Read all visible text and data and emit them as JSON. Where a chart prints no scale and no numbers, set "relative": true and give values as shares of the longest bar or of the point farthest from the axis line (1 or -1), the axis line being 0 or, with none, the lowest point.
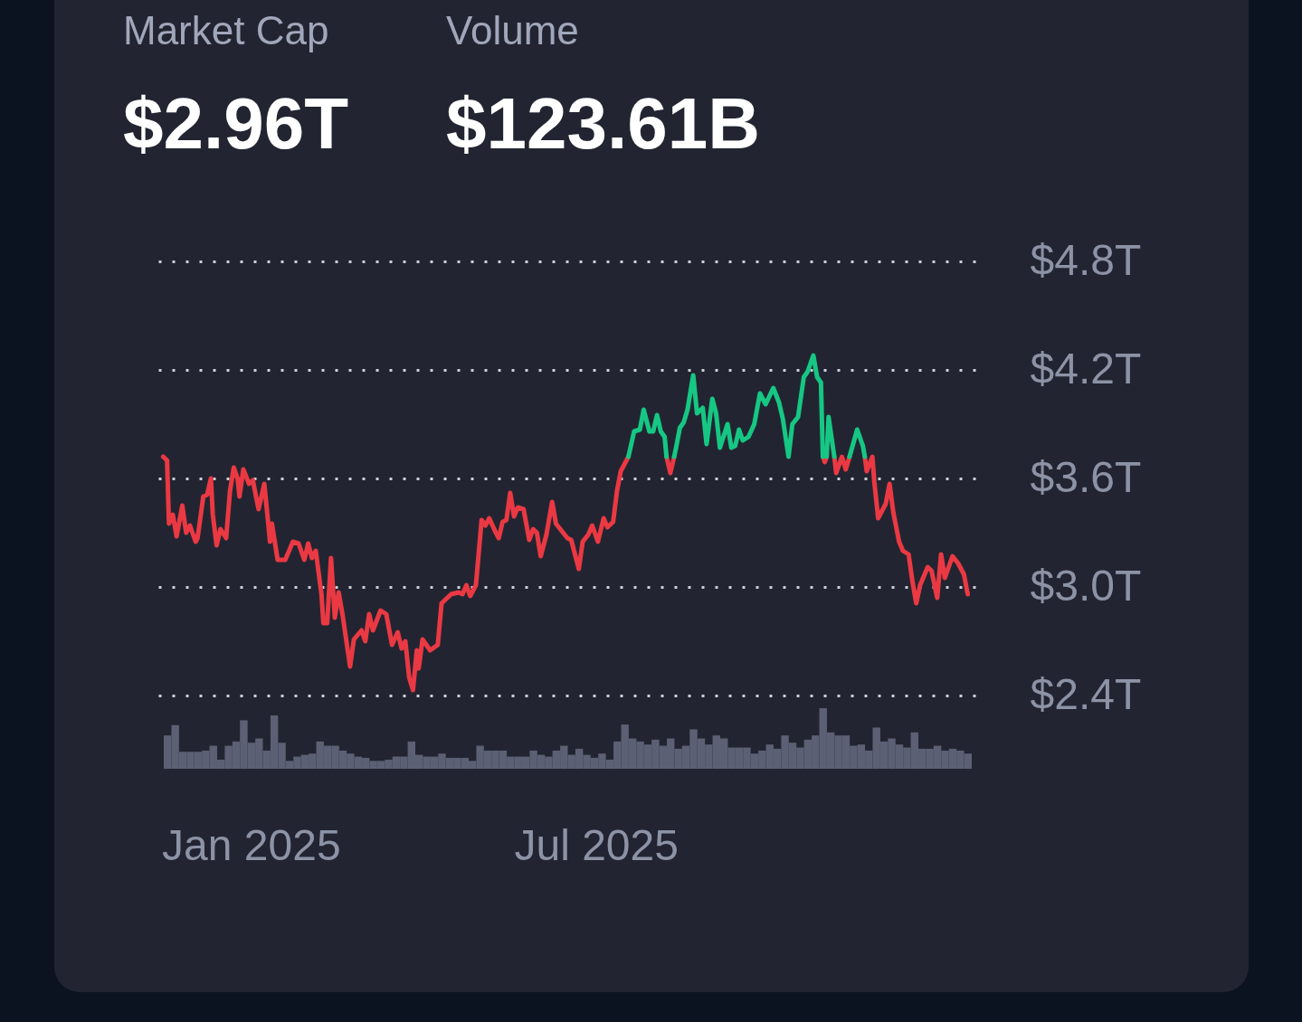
{
  "chart_data": [
    {
      "type": "line",
      "annotations": [
        "Market Cap",
        "$2.96T",
        "Volume",
        "$123.61B"
      ],
      "x": [
        "2024-11-16",
        "2024-11-18",
        "2024-11-19",
        "2024-11-21",
        "2024-11-23",
        "2024-11-26",
        "2024-11-28",
        "2024-11-30",
        "2024-12-03",
        "2024-12-04",
        "2024-12-07",
        "2024-12-09",
        "2024-12-11",
        "2024-12-12",
        "2024-12-14",
        "2024-12-16",
        "2024-12-19",
        "2024-12-21",
        "2024-12-23",
        "2024-12-25",
        "2024-12-26",
        "2024-12-28",
        "2024-12-31",
        "2025-01-02",
        "2025-01-05",
        "2025-01-08",
        "2025-01-10",
        "2025-01-11",
        "2025-01-12",
        "2025-01-15",
        "2025-01-19",
        "2025-01-23",
        "2025-01-26",
        "2025-01-29",
        "2025-01-31",
        "2025-02-02",
        "2025-02-04",
        "2025-02-07",
        "2025-02-08",
        "2025-02-10",
        "2025-02-12",
        "2025-02-14",
        "2025-02-16",
        "2025-02-18",
        "2025-02-22",
        "2025-02-24",
        "2025-02-28",
        "2025-03-02",
        "2025-03-04",
        "2025-03-06",
        "2025-03-10",
        "2025-03-13",
        "2025-03-16",
        "2025-03-19",
        "2025-03-21",
        "2025-03-23",
        "2025-03-25",
        "2025-03-27",
        "2025-03-29",
        "2025-03-30",
        "2025-04-01",
        "2025-04-05",
        "2025-04-09",
        "2025-04-11",
        "2025-04-13",
        "2025-04-16",
        "2025-04-20",
        "2025-04-22",
        "2025-04-24",
        "2025-04-26",
        "2025-04-29",
        "2025-05-01",
        "2025-05-02",
        "2025-05-04",
        "2025-05-06",
        "2025-05-09",
        "2025-05-11",
        "2025-05-13",
        "2025-05-15",
        "2025-05-17",
        "2025-05-19",
        "2025-05-21",
        "2025-05-24",
        "2025-05-27",
        "2025-05-29",
        "2025-05-31",
        "2025-06-02",
        "2025-06-05",
        "2025-06-08",
        "2025-06-10",
        "2025-06-13",
        "2025-06-16",
        "2025-06-18",
        "2025-06-22",
        "2025-06-24",
        "2025-06-27",
        "2025-06-29",
        "2025-07-02",
        "2025-07-05",
        "2025-07-07",
        "2025-07-10",
        "2025-07-12",
        "2025-07-14",
        "2025-07-16",
        "2025-07-18",
        "2025-07-21",
        "2025-07-24",
        "2025-07-26",
        "2025-07-29",
        "2025-07-31",
        "2025-08-02",
        "2025-08-04",
        "2025-08-06",
        "2025-08-07",
        "2025-08-09",
        "2025-08-11",
        "2025-08-12",
        "2025-08-14",
        "2025-08-16",
        "2025-08-18",
        "2025-08-21",
        "2025-08-23",
        "2025-08-26",
        "2025-08-28",
        "2025-08-31",
        "2025-09-02",
        "2025-09-04",
        "2025-09-08",
        "2025-09-10",
        "2025-09-12",
        "2025-09-14",
        "2025-09-16",
        "2025-09-19",
        "2025-09-22",
        "2025-09-25",
        "2025-09-28",
        "2025-10-02",
        "2025-10-05",
        "2025-10-07",
        "2025-10-10",
        "2025-10-12",
        "2025-10-15",
        "2025-10-18",
        "2025-10-20",
        "2025-10-23",
        "2025-10-25",
        "2025-10-27",
        "2025-10-28",
        "2025-10-29",
        "2025-10-30",
        "2025-10-31",
        "2025-11-03",
        "2025-11-04",
        "2025-11-07",
        "2025-11-09",
        "2025-11-11",
        "2025-11-15",
        "2025-11-18",
        "2025-11-19",
        "2025-11-20",
        "2025-11-23",
        "2025-11-24",
        "2025-11-26",
        "2025-11-30",
        "2025-12-02",
        "2025-12-04",
        "2025-12-07",
        "2025-12-09",
        "2025-12-12",
        "2025-12-14",
        "2025-12-16",
        "2025-12-18",
        "2025-12-22",
        "2025-12-24",
        "2025-12-27",
        "2025-12-29",
        "2025-12-31",
        "2026-01-04",
        "2026-01-07",
        "2026-01-10",
        "2026-01-12"
      ],
      "series": [
        {
          "color": "#ea3943",
          "values": [
            3.72,
            3.7,
            3.35,
            3.4,
            3.28,
            3.45,
            3.3,
            3.34,
            3.25,
            3.27,
            3.5,
            3.51,
            3.6,
            3.4,
            3.23,
            3.32,
            3.27,
            3.53,
            3.66,
            3.6,
            3.5,
            3.65,
            3.57,
            3.59,
            3.43,
            3.57,
            3.36,
            3.25,
            3.35,
            3.15,
            3.15,
            3.25,
            3.24,
            3.15,
            3.24,
            3.16,
            3.2,
            2.96,
            2.8,
            2.8,
            3.16,
            2.83,
            2.97,
            2.85,
            2.56,
            2.71,
            2.76,
            2.7,
            2.85,
            2.76,
            2.87,
            2.85,
            2.68,
            2.75,
            2.66,
            2.7,
            2.5,
            2.43,
            2.65,
            2.55,
            2.71,
            2.65,
            2.68,
            2.91,
            2.93,
            2.96,
            2.97,
            2.96,
            3.01,
            2.95,
            3.01,
            3.25,
            3.37,
            3.34,
            3.38,
            3.31,
            3.27,
            3.36,
            3.37,
            3.52,
            3.39,
            3.44,
            3.43,
            3.26,
            3.32,
            3.3,
            3.17,
            3.29,
            3.47,
            3.35,
            3.31,
            3.27,
            3.26,
            3.1,
            3.25,
            3.29,
            3.34,
            3.25,
            3.38,
            3.33,
            3.36,
            3.53,
            3.64,
            3.68,
            3.72,
            null,
            null,
            null,
            null,
            null,
            null,
            null,
            null,
            3.72,
            3.63,
            3.72,
            null,
            null,
            null,
            null,
            null,
            null,
            null,
            null,
            null,
            null,
            null,
            null,
            null,
            null,
            null,
            null,
            null,
            null,
            null,
            null,
            null,
            null,
            null,
            null,
            null,
            null,
            null,
            null,
            null,
            null,
            null,
            3.72,
            3.69,
            3.72,
            null,
            3.72,
            3.63,
            3.72,
            3.65,
            3.72,
            null,
            null,
            3.72,
            3.64,
            3.72,
            3.58,
            3.38,
            3.46,
            3.57,
            3.41,
            3.25,
            3.2,
            3.18,
            3.03,
            2.91,
            3.01,
            3.11,
            3.09,
            2.94,
            3.18,
            3.05,
            3.17,
            3.13,
            3.07,
            2.96
          ]
        },
        {
          "color": "#16c784",
          "values": [
            null,
            null,
            null,
            null,
            null,
            null,
            null,
            null,
            null,
            null,
            null,
            null,
            null,
            null,
            null,
            null,
            null,
            null,
            null,
            null,
            null,
            null,
            null,
            null,
            null,
            null,
            null,
            null,
            null,
            null,
            null,
            null,
            null,
            null,
            null,
            null,
            null,
            null,
            null,
            null,
            null,
            null,
            null,
            null,
            null,
            null,
            null,
            null,
            null,
            null,
            null,
            null,
            null,
            null,
            null,
            null,
            null,
            null,
            null,
            null,
            null,
            null,
            null,
            null,
            null,
            null,
            null,
            null,
            null,
            null,
            null,
            null,
            null,
            null,
            null,
            null,
            null,
            null,
            null,
            null,
            null,
            null,
            null,
            null,
            null,
            null,
            null,
            null,
            null,
            null,
            null,
            null,
            null,
            null,
            null,
            null,
            null,
            null,
            null,
            null,
            null,
            null,
            null,
            null,
            3.72,
            3.86,
            3.87,
            3.98,
            3.86,
            3.86,
            3.95,
            3.86,
            3.83,
            3.72,
            null,
            3.72,
            3.77,
            3.88,
            3.91,
            3.98,
            4.17,
            3.96,
            3.99,
            3.79,
            4.04,
            3.96,
            3.77,
            3.9,
            3.77,
            3.78,
            3.87,
            3.81,
            3.83,
            3.9,
            4.07,
            4.01,
            4.1,
            4.02,
            3.93,
            3.72,
            3.9,
            3.94,
            4.16,
            4.19,
            4.28,
            4.16,
            4.13,
            3.72,
            null,
            3.72,
            3.94,
            3.72,
            null,
            null,
            null,
            3.72,
            3.87,
            3.78,
            3.72,
            null,
            null,
            null,
            null,
            null,
            null,
            null,
            null,
            null,
            null,
            null,
            null,
            null,
            null,
            null,
            null,
            null,
            null,
            null,
            null,
            null,
            null
          ]
        }
      ],
      "xlim": [
        "2024-11-12",
        "2026-01-16"
      ],
      "xticks": [
        {
          "value": "2025-01-01",
          "label": "Jan 2025"
        },
        {
          "value": "2025-07-01",
          "label": "Jul 2025"
        }
      ],
      "ylim": [
        2.4,
        4.8
      ],
      "yticks": [
        {
          "value": 2.4,
          "label": "$2.4T"
        },
        {
          "value": 3.0,
          "label": "$3.0T"
        },
        {
          "value": 3.6,
          "label": "$3.6T"
        },
        {
          "value": 4.2,
          "label": "$4.2T"
        },
        {
          "value": 4.8,
          "label": "$4.8T"
        }
      ],
      "grid": "y"
    },
    {
      "type": "bar",
      "relative": true,
      "categories": [
        null,
        null,
        null,
        null,
        null,
        null,
        null,
        null,
        null,
        null,
        null,
        null,
        null,
        null,
        null,
        null,
        null,
        null,
        null,
        null,
        null,
        null,
        null,
        null,
        null,
        null,
        null,
        null,
        null,
        null,
        null,
        null,
        null,
        null,
        null,
        null,
        null,
        null,
        null,
        null,
        null,
        null,
        null,
        null,
        null,
        null,
        null,
        null,
        null,
        null,
        null,
        null,
        null,
        null,
        null,
        null,
        null,
        null,
        null,
        null,
        null,
        null,
        null,
        null,
        null,
        null,
        null,
        null,
        null,
        null,
        null,
        null,
        null,
        null,
        null,
        null,
        null,
        null,
        null,
        null,
        null,
        null,
        null,
        null,
        null,
        null,
        null,
        null,
        null,
        null,
        null,
        null,
        null,
        null,
        null,
        null,
        null,
        null,
        null,
        null,
        null,
        null,
        null,
        null,
        null,
        null
      ],
      "values": [
        0.55,
        0.72,
        0.28,
        0.28,
        0.28,
        0.3,
        0.38,
        0.15,
        0.38,
        0.45,
        0.8,
        0.43,
        0.5,
        0.3,
        0.88,
        0.43,
        0.13,
        0.2,
        0.23,
        0.25,
        0.45,
        0.38,
        0.38,
        0.3,
        0.25,
        0.2,
        0.18,
        0.13,
        0.13,
        0.15,
        0.2,
        0.2,
        0.45,
        0.23,
        0.2,
        0.2,
        0.25,
        0.18,
        0.18,
        0.18,
        0.13,
        0.38,
        0.3,
        0.3,
        0.3,
        0.2,
        0.2,
        0.2,
        0.3,
        0.23,
        0.2,
        0.3,
        0.38,
        0.23,
        0.33,
        0.23,
        0.18,
        0.25,
        0.15,
        0.45,
        0.73,
        0.5,
        0.45,
        0.4,
        0.48,
        0.38,
        0.5,
        0.33,
        0.38,
        0.65,
        0.5,
        0.4,
        0.55,
        0.5,
        0.35,
        0.35,
        0.35,
        0.25,
        0.3,
        0.4,
        0.33,
        0.55,
        0.43,
        0.35,
        0.48,
        0.55,
        1.0,
        0.6,
        0.55,
        0.55,
        0.38,
        0.4,
        0.3,
        0.68,
        0.45,
        0.5,
        0.4,
        0.35,
        0.6,
        0.33,
        0.33,
        0.38,
        0.3,
        0.33,
        0.3,
        0.25
      ],
      "color": "#5b6074"
    }
  ]
}
